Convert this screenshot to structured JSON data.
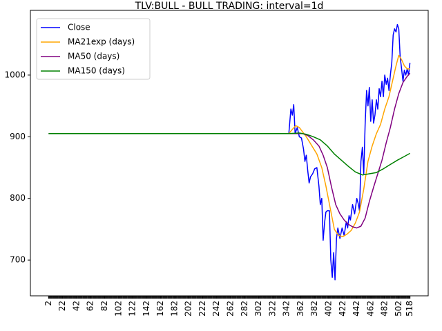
{
  "chart_data": {
    "type": "line",
    "title": "TLV:BULL - BULL TRADING: interval=1d",
    "xlabel": "",
    "ylabel": "",
    "xlim": [
      -24,
      544
    ],
    "ylim": [
      642,
      1105
    ],
    "x_tick_labels": [
      "2",
      "22",
      "42",
      "62",
      "82",
      "102",
      "122",
      "142",
      "162",
      "182",
      "202",
      "222",
      "242",
      "262",
      "282",
      "302",
      "322",
      "342",
      "362",
      "382",
      "402",
      "422",
      "442",
      "462",
      "482",
      "502",
      "518"
    ],
    "y_ticks": [
      700,
      800,
      900,
      1000
    ],
    "y_tick_labels": [
      "700",
      "800",
      "900",
      "1000"
    ],
    "grid": false,
    "legend": {
      "placement": "top-left"
    },
    "series": [
      {
        "name": "Close",
        "color": "#0000ff",
        "points": [
          [
            2,
            905
          ],
          [
            345,
            905
          ],
          [
            348,
            945
          ],
          [
            350,
            935
          ],
          [
            352,
            952
          ],
          [
            354,
            905
          ],
          [
            357,
            915
          ],
          [
            360,
            900
          ],
          [
            363,
            898
          ],
          [
            366,
            880
          ],
          [
            368,
            860
          ],
          [
            370,
            870
          ],
          [
            372,
            845
          ],
          [
            374,
            825
          ],
          [
            376,
            835
          ],
          [
            379,
            840
          ],
          [
            382,
            848
          ],
          [
            385,
            850
          ],
          [
            388,
            820
          ],
          [
            390,
            790
          ],
          [
            392,
            800
          ],
          [
            394,
            732
          ],
          [
            396,
            760
          ],
          [
            398,
            778
          ],
          [
            400,
            780
          ],
          [
            403,
            780
          ],
          [
            405,
            700
          ],
          [
            407,
            672
          ],
          [
            409,
            712
          ],
          [
            411,
            668
          ],
          [
            413,
            735
          ],
          [
            415,
            752
          ],
          [
            418,
            735
          ],
          [
            421,
            752
          ],
          [
            424,
            740
          ],
          [
            427,
            762
          ],
          [
            429,
            752
          ],
          [
            431,
            772
          ],
          [
            433,
            765
          ],
          [
            436,
            790
          ],
          [
            439,
            775
          ],
          [
            442,
            800
          ],
          [
            444,
            792
          ],
          [
            446,
            780
          ],
          [
            448,
            860
          ],
          [
            450,
            883
          ],
          [
            452,
            840
          ],
          [
            454,
            920
          ],
          [
            456,
            975
          ],
          [
            458,
            950
          ],
          [
            460,
            980
          ],
          [
            462,
            925
          ],
          [
            464,
            960
          ],
          [
            466,
            922
          ],
          [
            468,
            935
          ],
          [
            470,
            960
          ],
          [
            472,
            945
          ],
          [
            474,
            978
          ],
          [
            476,
            965
          ],
          [
            478,
            990
          ],
          [
            480,
            965
          ],
          [
            482,
            1000
          ],
          [
            484,
            985
          ],
          [
            486,
            995
          ],
          [
            488,
            975
          ],
          [
            490,
            1000
          ],
          [
            492,
            1020
          ],
          [
            494,
            1065
          ],
          [
            496,
            1075
          ],
          [
            498,
            1070
          ],
          [
            500,
            1082
          ],
          [
            502,
            1075
          ],
          [
            504,
            1030
          ],
          [
            506,
            1010
          ],
          [
            508,
            990
          ],
          [
            510,
            1008
          ],
          [
            512,
            1000
          ],
          [
            514,
            1010
          ],
          [
            516,
            1000
          ],
          [
            518,
            1020
          ]
        ]
      },
      {
        "name": "MA21exp (days)",
        "color": "#ffa500",
        "points": [
          [
            2,
            905
          ],
          [
            345,
            905
          ],
          [
            350,
            912
          ],
          [
            355,
            918
          ],
          [
            360,
            915
          ],
          [
            370,
            900
          ],
          [
            378,
            885
          ],
          [
            385,
            872
          ],
          [
            392,
            850
          ],
          [
            398,
            820
          ],
          [
            404,
            785
          ],
          [
            410,
            750
          ],
          [
            416,
            740
          ],
          [
            422,
            738
          ],
          [
            428,
            742
          ],
          [
            434,
            748
          ],
          [
            440,
            760
          ],
          [
            446,
            778
          ],
          [
            452,
            815
          ],
          [
            458,
            860
          ],
          [
            464,
            885
          ],
          [
            470,
            905
          ],
          [
            476,
            920
          ],
          [
            482,
            945
          ],
          [
            488,
            965
          ],
          [
            494,
            995
          ],
          [
            498,
            1015
          ],
          [
            502,
            1032
          ],
          [
            506,
            1025
          ],
          [
            510,
            1015
          ],
          [
            514,
            1010
          ],
          [
            518,
            1010
          ]
        ]
      },
      {
        "name": "MA50 (days)",
        "color": "#800080",
        "points": [
          [
            2,
            905
          ],
          [
            345,
            905
          ],
          [
            355,
            905
          ],
          [
            365,
            905
          ],
          [
            372,
            902
          ],
          [
            380,
            895
          ],
          [
            388,
            885
          ],
          [
            394,
            870
          ],
          [
            400,
            850
          ],
          [
            406,
            818
          ],
          [
            412,
            790
          ],
          [
            418,
            775
          ],
          [
            424,
            765
          ],
          [
            430,
            758
          ],
          [
            436,
            754
          ],
          [
            442,
            752
          ],
          [
            448,
            755
          ],
          [
            454,
            768
          ],
          [
            460,
            795
          ],
          [
            466,
            818
          ],
          [
            472,
            840
          ],
          [
            478,
            862
          ],
          [
            484,
            890
          ],
          [
            490,
            915
          ],
          [
            496,
            945
          ],
          [
            502,
            970
          ],
          [
            508,
            988
          ],
          [
            514,
            998
          ],
          [
            518,
            1003
          ]
        ]
      },
      {
        "name": "MA150 (days)",
        "color": "#008000",
        "points": [
          [
            2,
            905
          ],
          [
            345,
            905
          ],
          [
            360,
            906
          ],
          [
            370,
            904
          ],
          [
            380,
            900
          ],
          [
            390,
            895
          ],
          [
            400,
            885
          ],
          [
            410,
            872
          ],
          [
            420,
            862
          ],
          [
            430,
            852
          ],
          [
            440,
            843
          ],
          [
            450,
            838
          ],
          [
            460,
            840
          ],
          [
            470,
            842
          ],
          [
            480,
            848
          ],
          [
            490,
            855
          ],
          [
            500,
            862
          ],
          [
            510,
            868
          ],
          [
            518,
            873
          ]
        ]
      }
    ]
  }
}
